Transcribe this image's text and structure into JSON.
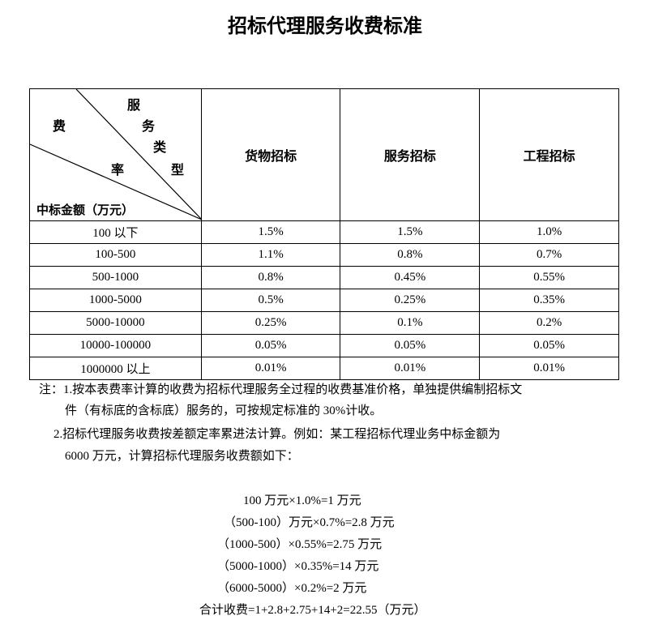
{
  "title": "招标代理服务收费标准",
  "header": {
    "diag_service": [
      "服",
      "务",
      "类",
      "型"
    ],
    "diag_fee": "费",
    "diag_rate": "率",
    "diag_amount": "中标金额（万元）",
    "columns": [
      "货物招标",
      "服务招标",
      "工程招标"
    ]
  },
  "rows": [
    [
      "100 以下",
      "1.5%",
      "1.5%",
      "1.0%"
    ],
    [
      "100-500",
      "1.1%",
      "0.8%",
      "0.7%"
    ],
    [
      "500-1000",
      "0.8%",
      "0.45%",
      "0.55%"
    ],
    [
      "1000-5000",
      "0.5%",
      "0.25%",
      "0.35%"
    ],
    [
      "5000-10000",
      "0.25%",
      "0.1%",
      "0.2%"
    ],
    [
      "10000-100000",
      "0.05%",
      "0.05%",
      "0.05%"
    ],
    [
      "1000000 以上",
      "0.01%",
      "0.01%",
      "0.01%"
    ]
  ],
  "notes": {
    "n1_line1": "注：1.按本表费率计算的收费为招标代理服务全过程的收费基准价格，单独提供编制招标文",
    "n1_line2": "件（有标底的含标底）服务的，可按规定标准的 30%计收。",
    "n2_line1": "2.招标代理服务收费按差额定率累进法计算。例如：某工程招标代理业务中标金额为",
    "n2_line2": "6000 万元，计算招标代理服务收费额如下："
  },
  "calc": [
    "100 万元×1.0%=1 万元",
    "（500-100）万元×0.7%=2.8 万元",
    "（1000-500）×0.55%=2.75 万元",
    "（5000-1000）×0.35%=14 万元",
    "（6000-5000）×0.2%=2 万元",
    "合计收费=1+2.8+2.75+14+2=22.55（万元）"
  ]
}
